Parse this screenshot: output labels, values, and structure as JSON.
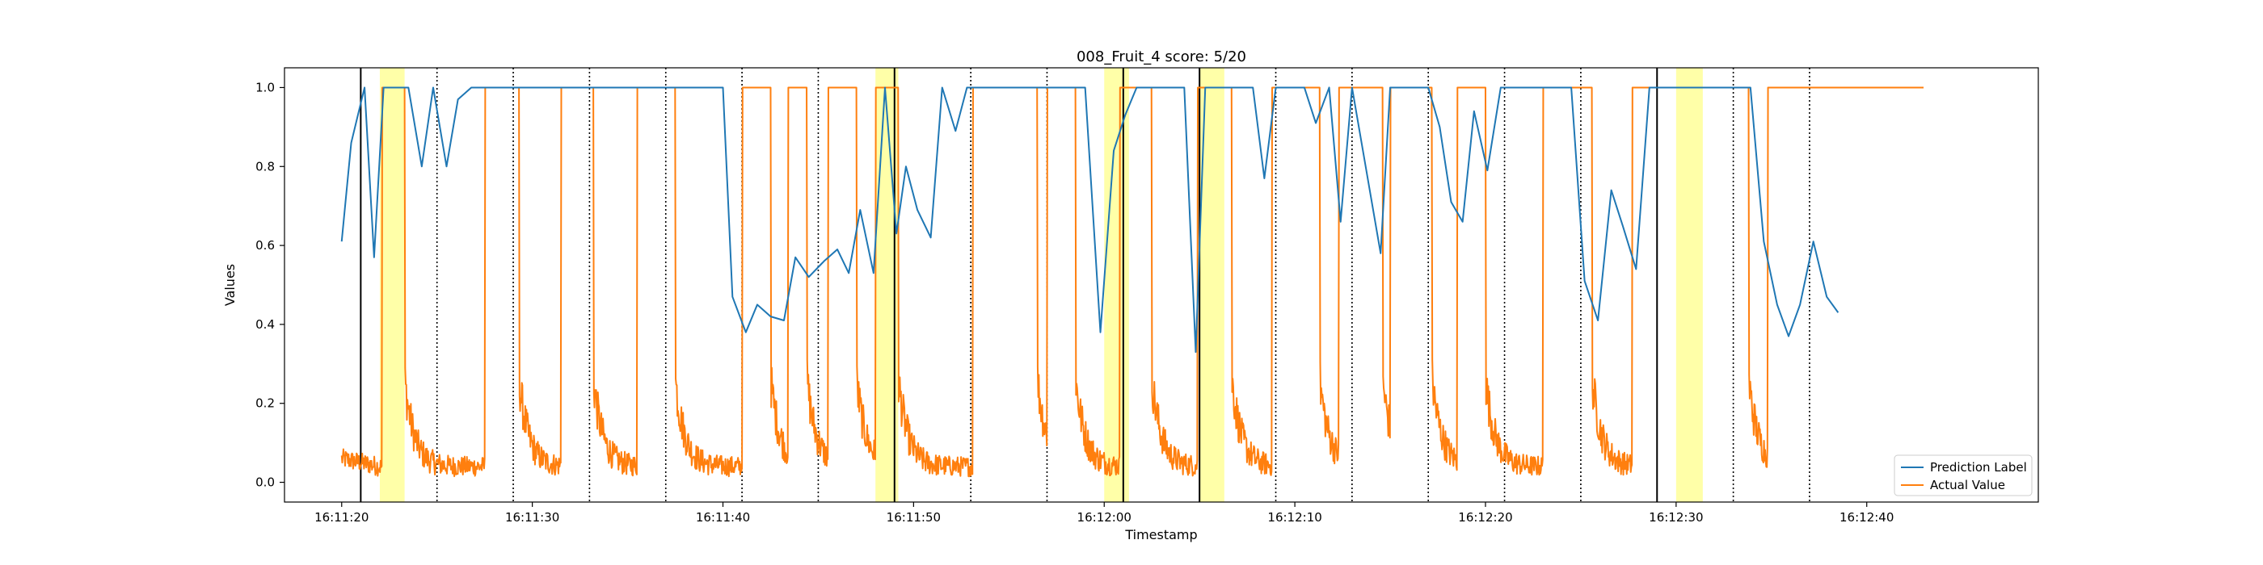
{
  "chart_data": {
    "type": "line",
    "title": "008_Fruit_4 score: 5/20",
    "xlabel": "Timestamp",
    "ylabel": "Values",
    "xlim": [
      "16:11:17",
      "16:12:49"
    ],
    "ylim": [
      -0.05,
      1.05
    ],
    "x_ticks": [
      "16:11:20",
      "16:11:30",
      "16:11:40",
      "16:11:50",
      "16:12:00",
      "16:12:10",
      "16:12:20",
      "16:12:30",
      "16:12:40"
    ],
    "y_ticks": [
      "0.0",
      "0.2",
      "0.4",
      "0.6",
      "0.8",
      "1.0"
    ],
    "grid": false,
    "legend_position": "bottom-right",
    "series": [
      {
        "name": "Prediction Label",
        "color": "#1f77b4",
        "points": [
          [
            "16:11:20.0",
            0.61
          ],
          [
            "16:11:20.5",
            0.86
          ],
          [
            "16:11:21.2",
            1.0
          ],
          [
            "16:11:21.7",
            0.57
          ],
          [
            "16:11:22.2",
            1.0
          ],
          [
            "16:11:23.5",
            1.0
          ],
          [
            "16:11:24.2",
            0.8
          ],
          [
            "16:11:24.8",
            1.0
          ],
          [
            "16:11:25.5",
            0.8
          ],
          [
            "16:11:26.1",
            0.97
          ],
          [
            "16:11:26.8",
            1.0
          ],
          [
            "16:11:40.0",
            1.0
          ],
          [
            "16:11:40.5",
            0.47
          ],
          [
            "16:11:41.2",
            0.38
          ],
          [
            "16:11:41.8",
            0.45
          ],
          [
            "16:11:42.5",
            0.42
          ],
          [
            "16:11:43.2",
            0.41
          ],
          [
            "16:11:43.8",
            0.57
          ],
          [
            "16:11:44.5",
            0.52
          ],
          [
            "16:11:45.3",
            0.56
          ],
          [
            "16:11:46.0",
            0.59
          ],
          [
            "16:11:46.6",
            0.53
          ],
          [
            "16:11:47.2",
            0.69
          ],
          [
            "16:11:47.9",
            0.53
          ],
          [
            "16:11:48.5",
            1.0
          ],
          [
            "16:11:49.1",
            0.63
          ],
          [
            "16:11:49.6",
            0.8
          ],
          [
            "16:11:50.2",
            0.69
          ],
          [
            "16:11:50.9",
            0.62
          ],
          [
            "16:11:51.5",
            1.0
          ],
          [
            "16:11:52.2",
            0.89
          ],
          [
            "16:11:52.8",
            1.0
          ],
          [
            "16:11:53.5",
            1.0
          ],
          [
            "16:11:56.0",
            1.0
          ],
          [
            "16:11:59.0",
            1.0
          ],
          [
            "16:11:59.8",
            0.38
          ],
          [
            "16:12:00.5",
            0.84
          ],
          [
            "16:12:01.1",
            0.93
          ],
          [
            "16:12:01.7",
            1.0
          ],
          [
            "16:12:04.2",
            1.0
          ],
          [
            "16:12:04.8",
            0.33
          ],
          [
            "16:12:05.3",
            1.0
          ],
          [
            "16:12:07.8",
            1.0
          ],
          [
            "16:12:08.4",
            0.77
          ],
          [
            "16:12:09.0",
            1.0
          ],
          [
            "16:12:10.5",
            1.0
          ],
          [
            "16:12:11.1",
            0.91
          ],
          [
            "16:12:11.8",
            1.0
          ],
          [
            "16:12:12.4",
            0.66
          ],
          [
            "16:12:13.0",
            1.0
          ],
          [
            "16:12:14.5",
            0.58
          ],
          [
            "16:12:15.0",
            1.0
          ],
          [
            "16:12:17.0",
            1.0
          ],
          [
            "16:12:17.6",
            0.9
          ],
          [
            "16:12:18.2",
            0.71
          ],
          [
            "16:12:18.8",
            0.66
          ],
          [
            "16:12:19.4",
            0.94
          ],
          [
            "16:12:20.1",
            0.79
          ],
          [
            "16:12:20.8",
            1.0
          ],
          [
            "16:12:24.5",
            1.0
          ],
          [
            "16:12:25.2",
            0.51
          ],
          [
            "16:12:25.9",
            0.41
          ],
          [
            "16:12:26.6",
            0.74
          ],
          [
            "16:12:27.2",
            0.65
          ],
          [
            "16:12:27.9",
            0.54
          ],
          [
            "16:12:28.6",
            1.0
          ],
          [
            "16:12:33.9",
            1.0
          ],
          [
            "16:12:34.6",
            0.61
          ],
          [
            "16:12:35.3",
            0.45
          ],
          [
            "16:12:35.9",
            0.37
          ],
          [
            "16:12:36.5",
            0.45
          ],
          [
            "16:12:37.2",
            0.61
          ],
          [
            "16:12:37.9",
            0.47
          ],
          [
            "16:12:38.5",
            0.43
          ]
        ]
      },
      {
        "name": "Actual Value",
        "color": "#ff7f0e",
        "baseline": 0.04,
        "noise": 0.025,
        "initial_value": 0.06,
        "end_time": "16:12:43.0",
        "high_intervals": [
          [
            "16:11:22.1",
            "16:11:23.3"
          ],
          [
            "16:11:27.5",
            "16:11:29.3"
          ],
          [
            "16:11:31.5",
            "16:11:33.2"
          ],
          [
            "16:11:35.5",
            "16:11:37.5"
          ],
          [
            "16:11:41.0",
            "16:11:42.5"
          ],
          [
            "16:11:43.4",
            "16:11:44.4"
          ],
          [
            "16:11:45.5",
            "16:11:47.0"
          ],
          [
            "16:11:48.0",
            "16:11:49.2"
          ],
          [
            "16:11:53.1",
            "16:11:56.5"
          ],
          [
            "16:11:57.0",
            "16:11:58.5"
          ],
          [
            "16:12:00.8",
            "16:12:02.5"
          ],
          [
            "16:12:04.9",
            "16:12:06.7"
          ],
          [
            "16:12:08.8",
            "16:12:11.3"
          ],
          [
            "16:12:12.3",
            "16:12:14.6"
          ],
          [
            "16:12:15.0",
            "16:12:17.2"
          ],
          [
            "16:12:18.5",
            "16:12:20.0"
          ],
          [
            "16:12:23.0",
            "16:12:25.6"
          ],
          [
            "16:12:27.7",
            "16:12:33.8"
          ],
          [
            "16:12:34.8",
            "16:12:43.0"
          ]
        ]
      }
    ],
    "highlight_regions": [
      [
        "16:11:22.0",
        "16:11:23.3"
      ],
      [
        "16:11:48.0",
        "16:11:49.2"
      ],
      [
        "16:12:00.0",
        "16:12:01.3"
      ],
      [
        "16:12:05.0",
        "16:12:06.3"
      ],
      [
        "16:12:30.0",
        "16:12:31.4"
      ]
    ],
    "highlight_color": "#ffff99",
    "solid_vlines": [
      "16:11:21.0",
      "16:11:49.0",
      "16:12:01.0",
      "16:12:05.0",
      "16:12:29.0"
    ],
    "dotted_vlines": [
      "16:11:25.0",
      "16:11:29.0",
      "16:11:33.0",
      "16:11:37.0",
      "16:11:41.0",
      "16:11:45.0",
      "16:11:53.0",
      "16:11:57.0",
      "16:12:09.0",
      "16:12:13.0",
      "16:12:17.0",
      "16:12:21.0",
      "16:12:25.0",
      "16:12:33.0",
      "16:12:37.0"
    ]
  }
}
